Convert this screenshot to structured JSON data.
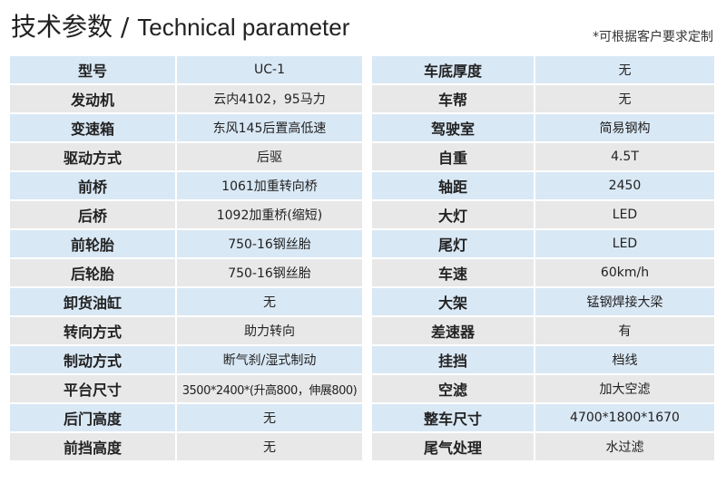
{
  "title": {
    "cn": "技术参数",
    "sep": " / ",
    "en": "Technical parameter"
  },
  "note": "*可根据客户要求定制",
  "colors": {
    "row_blue": "#d9e8f5",
    "row_grey": "#e8e8e8"
  },
  "left": [
    {
      "label": "型号",
      "value": "UC-1"
    },
    {
      "label": "发动机",
      "value": "云内4102，95马力"
    },
    {
      "label": "变速箱",
      "value": "东风145后置高低速"
    },
    {
      "label": "驱动方式",
      "value": "后驱"
    },
    {
      "label": "前桥",
      "value": "1061加重转向桥"
    },
    {
      "label": "后桥",
      "value": "1092加重桥(缩短)"
    },
    {
      "label": "前轮胎",
      "value": "750-16钢丝胎"
    },
    {
      "label": "后轮胎",
      "value": "750-16钢丝胎"
    },
    {
      "label": "卸货油缸",
      "value": "无"
    },
    {
      "label": "转向方式",
      "value": "助力转向"
    },
    {
      "label": "制动方式",
      "value": "断气刹/湿式制动"
    },
    {
      "label": "平台尺寸",
      "value": "3500*2400*(升高800，伸展800)"
    },
    {
      "label": "后门高度",
      "value": "无"
    },
    {
      "label": "前挡高度",
      "value": "无"
    }
  ],
  "right": [
    {
      "label": "车底厚度",
      "value": "无"
    },
    {
      "label": "车帮",
      "value": "无"
    },
    {
      "label": "驾驶室",
      "value": "简易钢构"
    },
    {
      "label": "自重",
      "value": "4.5T"
    },
    {
      "label": "轴距",
      "value": "2450"
    },
    {
      "label": "大灯",
      "value": "LED"
    },
    {
      "label": "尾灯",
      "value": "LED"
    },
    {
      "label": "车速",
      "value": "60km/h"
    },
    {
      "label": "大架",
      "value": "锰钢焊接大梁"
    },
    {
      "label": "差速器",
      "value": "有"
    },
    {
      "label": "挂挡",
      "value": "档线"
    },
    {
      "label": "空滤",
      "value": "加大空滤"
    },
    {
      "label": "整车尺寸",
      "value": "4700*1800*1670"
    },
    {
      "label": "尾气处理",
      "value": "水过滤"
    }
  ]
}
